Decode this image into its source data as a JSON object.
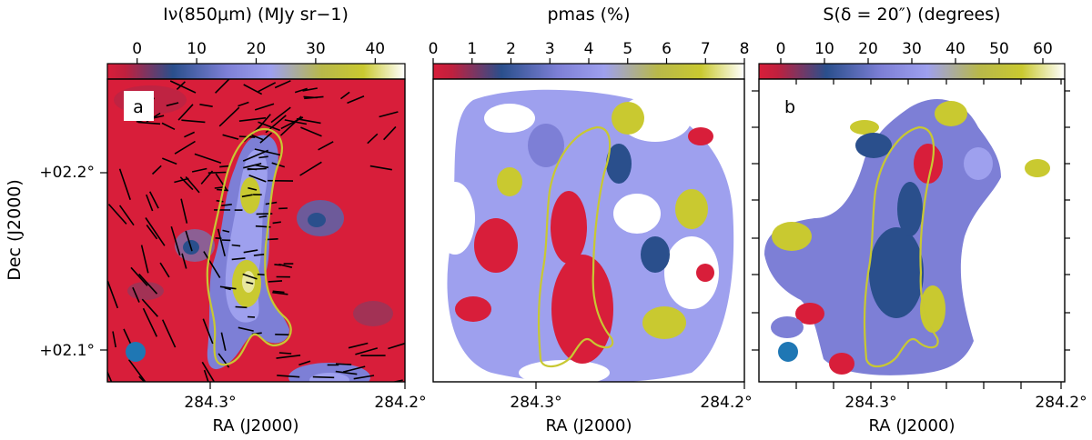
{
  "figure": {
    "ylabel": "Dec (J2000)",
    "colors": {
      "colormap": [
        "#d81e3a",
        "#c0203e",
        "#2a4f8c",
        "#7d7fd6",
        "#9ea0ee",
        "#b8b84a",
        "#c9c930",
        "#ffffff"
      ],
      "contour": "#c8c832",
      "beam": "#1f77b4",
      "vectors": "#000000"
    }
  },
  "chart_data": [
    {
      "type": "heatmap",
      "panel_label": "a",
      "colorbar_label": "Iν(850μm) (MJy sr−1)",
      "colorbar_range": [
        -5,
        45
      ],
      "colorbar_ticks": [
        {
          "value": 0,
          "label": "0"
        },
        {
          "value": 10,
          "label": "10"
        },
        {
          "value": 20,
          "label": "20"
        },
        {
          "value": 30,
          "label": "30"
        },
        {
          "value": 40,
          "label": "40"
        }
      ],
      "xlabel": "RA (J2000)",
      "x_ticks": [
        "284.3°",
        "284.2°"
      ],
      "ylabel": "Dec (J2000)",
      "y_ticks": [
        "+02.2°",
        "+02.1°"
      ],
      "overlays": [
        "polarization vectors",
        "intensity contour",
        "beam"
      ]
    },
    {
      "type": "heatmap",
      "panel_label": "",
      "colorbar_label": "pmas (%)",
      "colorbar_range": [
        0,
        8
      ],
      "colorbar_ticks": [
        {
          "value": 0,
          "label": "0"
        },
        {
          "value": 1,
          "label": "1"
        },
        {
          "value": 2,
          "label": "2"
        },
        {
          "value": 3,
          "label": "3"
        },
        {
          "value": 4,
          "label": "4"
        },
        {
          "value": 5,
          "label": "5"
        },
        {
          "value": 6,
          "label": "6"
        },
        {
          "value": 7,
          "label": "7"
        },
        {
          "value": 8,
          "label": "8"
        }
      ],
      "xlabel": "RA (J2000)",
      "x_ticks": [
        "284.3°",
        "284.2°"
      ],
      "overlays": [
        "intensity contour"
      ]
    },
    {
      "type": "heatmap",
      "panel_label": "b",
      "colorbar_label": "S(δ = 20″) (degrees)",
      "colorbar_range": [
        -5,
        65
      ],
      "colorbar_ticks": [
        {
          "value": 0,
          "label": "0"
        },
        {
          "value": 10,
          "label": "10"
        },
        {
          "value": 20,
          "label": "20"
        },
        {
          "value": 30,
          "label": "30"
        },
        {
          "value": 40,
          "label": "40"
        },
        {
          "value": 50,
          "label": "50"
        },
        {
          "value": 60,
          "label": "60"
        }
      ],
      "xlabel": "RA (J2000)",
      "x_ticks": [
        "284.3°",
        "284.2°"
      ],
      "overlays": [
        "intensity contour",
        "beam"
      ]
    }
  ]
}
